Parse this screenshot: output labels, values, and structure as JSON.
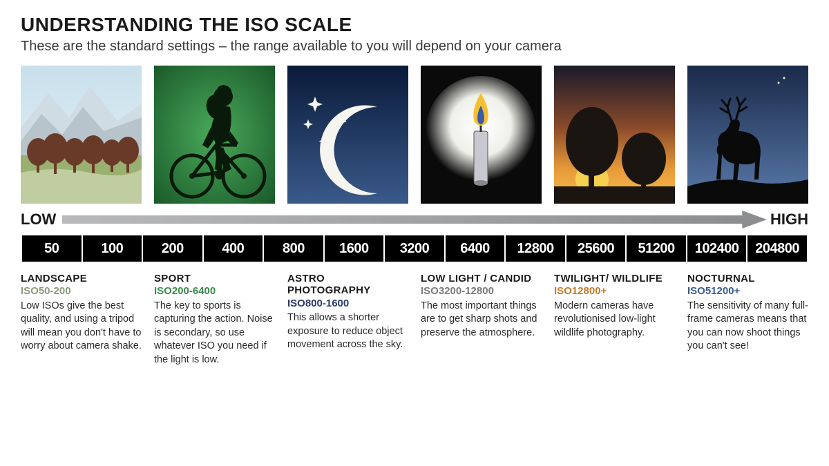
{
  "header": {
    "title": "UNDERSTANDING THE ISO SCALE",
    "subtitle": "These are the standard settings – the range available to you will depend on your camera"
  },
  "arrow": {
    "low": "LOW",
    "high": "HIGH",
    "fill_start": "#b8b9bb",
    "fill_end": "#8a8c8f"
  },
  "scale_values": [
    "50",
    "100",
    "200",
    "400",
    "800",
    "1600",
    "3200",
    "6400",
    "12800",
    "25600",
    "51200",
    "102400",
    "204800"
  ],
  "scale_bar": {
    "bg": "#000000",
    "text": "#ffffff"
  },
  "categories": [
    {
      "key": "landscape",
      "title": "LANDSCAPE",
      "iso": "ISO50-200",
      "iso_color": "#8a9b7a",
      "body": "Low ISOs give the best quality, and using a tripod will mean you don't have to worry about camera shake."
    },
    {
      "key": "sport",
      "title": "SPORT",
      "iso": "ISO200-6400",
      "iso_color": "#3a8a4a",
      "body": "The key to sports is capturing the action. Noise is secondary, so use whatever ISO you need if the light is low."
    },
    {
      "key": "astro",
      "title": "ASTRO PHOTOGRAPHY",
      "iso": "ISO800-1600",
      "iso_color": "#2a3a6a",
      "body": "This allows a shorter exposure to reduce object movement across the sky."
    },
    {
      "key": "lowlight",
      "title": "LOW LIGHT / CANDID",
      "iso": "ISO3200-12800",
      "iso_color": "#7a7a7a",
      "body": "The most important things are to get sharp shots and preserve the atmosphere."
    },
    {
      "key": "twilight",
      "title": "TWILIGHT/ WILDLIFE",
      "iso": "ISO12800+",
      "iso_color": "#c77a2a",
      "body": "Modern cameras have revolutionised low-light wildlife photography."
    },
    {
      "key": "nocturnal",
      "title": "NOCTURNAL",
      "iso": "ISO51200+",
      "iso_color": "#3a5a8a",
      "body": "The sensitivity of many full-frame cameras means that  you can now shoot things you can't see!"
    }
  ],
  "illus_colors": {
    "landscape": {
      "sky1": "#c8e0ec",
      "sky2": "#e8f2f6",
      "mtn1": "#b8c4cc",
      "mtn2": "#d0dce4",
      "tree": "#6a3a28",
      "grass1": "#9ab070",
      "grass2": "#c0cda0"
    },
    "sport": {
      "bg1": "#1a5a2a",
      "bg2": "#4aaa5a",
      "sil": "#0a1a0a"
    },
    "astro": {
      "sky1": "#0a1a3a",
      "sky2": "#3a5a8a",
      "moon": "#f5f5f0",
      "star": "#f5f5f0"
    },
    "lowlight": {
      "bg": "#0a0a0a",
      "glow": "#f5f5f0",
      "candle_body": "#c8c8d0",
      "flame_out": "#f5c030",
      "flame_in": "#3a5aaa"
    },
    "twilight": {
      "sky1": "#1a1a2a",
      "sky2": "#d87a2a",
      "sun": "#f5d050",
      "tree": "#1a1510",
      "ground": "#1a1510"
    },
    "nocturnal": {
      "sky1": "#1a2a4a",
      "sky2": "#5a7aaa",
      "moon": "#f5f0d0",
      "deer": "#0a0a0a",
      "ground": "#0a0a0a"
    }
  }
}
